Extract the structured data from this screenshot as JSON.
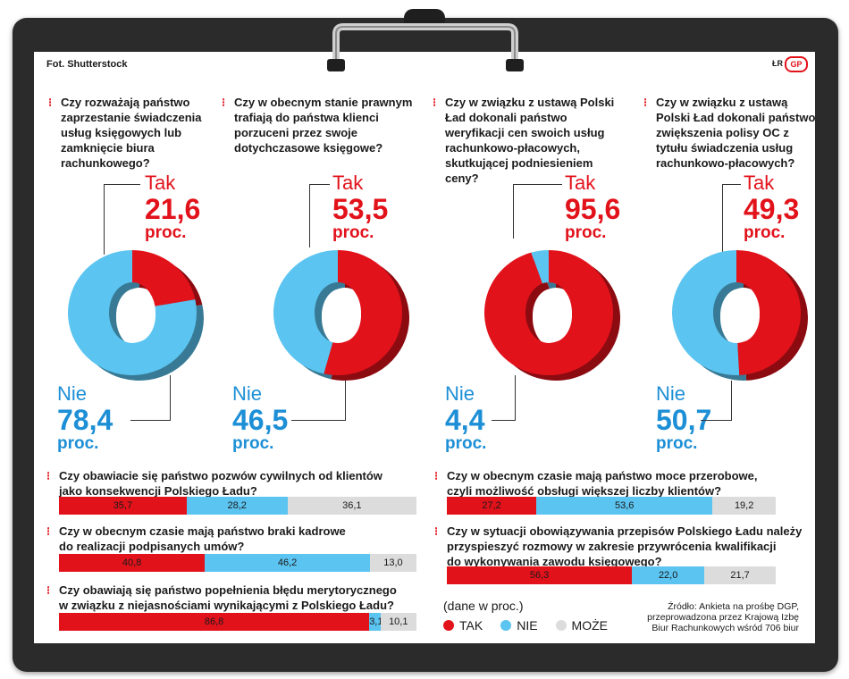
{
  "credit_left": "Fot. Shutterstock",
  "credit_right": "ŁR",
  "logo": "GP",
  "donuts": [
    {
      "question": "Czy rozważają państwo zaprzestanie świadczenia usług księgowych lub zamknięcie biura rachunkowego?",
      "tak_label": "Tak",
      "tak_value": "21,6",
      "nie_label": "Nie",
      "nie_value": "78,4",
      "unit": "proc."
    },
    {
      "question": "Czy w obecnym stanie prawnym trafiają do państwa klienci porzuceni przez swoje dotychczasowe księgowe?",
      "tak_label": "Tak",
      "tak_value": "53,5",
      "nie_label": "Nie",
      "nie_value": "46,5",
      "unit": "proc."
    },
    {
      "question": "Czy w związku z ustawą Polski Ład dokonali państwo weryfikacji cen swoich usług rachunkowo-płacowych, skutkującej podniesieniem ceny?",
      "tak_label": "Tak",
      "tak_value": "95,6",
      "nie_label": "Nie",
      "nie_value": "4,4",
      "unit": "proc."
    },
    {
      "question": "Czy w związku z ustawą Polski Ład dokonali państwo zwiększenia polisy OC z tytułu świadczenia usług rachunkowo-płacowych?",
      "tak_label": "Tak",
      "tak_value": "49,3",
      "nie_label": "Nie",
      "nie_value": "50,7",
      "unit": "proc."
    }
  ],
  "bars": [
    {
      "question_lines": [
        "Czy obawiacie się państwo pozwów cywilnych od klientów",
        "jako konsekwencji Polskiego Ładu?"
      ],
      "labels": [
        "35,7",
        "28,2",
        "36,1"
      ]
    },
    {
      "question_lines": [
        "Czy w obecnym czasie mają państwo braki kadrowe",
        "do realizacji podpisanych umów?"
      ],
      "labels": [
        "40,8",
        "46,2",
        "13,0"
      ]
    },
    {
      "question_lines": [
        "Czy obawiają się państwo popełnienia błędu merytorycznego",
        "w związku z niejasnościami wynikającymi z Polskiego Ładu?"
      ],
      "labels": [
        "86,8",
        "3,1",
        "10,1"
      ]
    },
    {
      "question_lines": [
        "Czy w obecnym czasie mają państwo moce przerobowe,",
        "czyli możliwość obsługi większej liczby klientów?"
      ],
      "labels": [
        "27,2",
        "53,6",
        "19,2"
      ]
    },
    {
      "question_lines": [
        "Czy w sytuacji obowiązywania przepisów Polskiego Ładu należy",
        "przyspieszyć rozmowy w zakresie  przywrócenia kwalifikacji",
        "do wykonywania zawodu księgowego?"
      ],
      "labels": [
        "56,3",
        "22,0",
        "21,7"
      ]
    }
  ],
  "legend": {
    "unit_note": "(dane w proc.)",
    "tak": "TAK",
    "nie": "NIE",
    "moze": "MOŻE"
  },
  "source_lines": [
    "Źródło: Ankieta na prośbę DGP,",
    "przeprowadzona przez Krajową Izbę",
    "Biur Rachunkowych wśród 706 biur"
  ],
  "colors": {
    "tak": "#e2121b",
    "nie": "#5bc4f0",
    "moze": "#dcdcdc"
  },
  "chart_data": [
    {
      "type": "pie",
      "categories": [
        "Tak",
        "Nie"
      ],
      "values": [
        21.6,
        78.4
      ]
    },
    {
      "type": "pie",
      "categories": [
        "Tak",
        "Nie"
      ],
      "values": [
        53.5,
        46.5
      ]
    },
    {
      "type": "pie",
      "categories": [
        "Tak",
        "Nie"
      ],
      "values": [
        95.6,
        4.4
      ]
    },
    {
      "type": "pie",
      "categories": [
        "Tak",
        "Nie"
      ],
      "values": [
        49.3,
        50.7
      ]
    },
    {
      "type": "bar",
      "categories": [
        "TAK",
        "NIE",
        "MOŻE"
      ],
      "values": [
        35.7,
        28.2,
        36.1
      ]
    },
    {
      "type": "bar",
      "categories": [
        "TAK",
        "NIE",
        "MOŻE"
      ],
      "values": [
        40.8,
        46.2,
        13.0
      ]
    },
    {
      "type": "bar",
      "categories": [
        "TAK",
        "NIE",
        "MOŻE"
      ],
      "values": [
        86.8,
        3.1,
        10.1
      ]
    },
    {
      "type": "bar",
      "categories": [
        "TAK",
        "NIE",
        "MOŻE"
      ],
      "values": [
        27.2,
        53.6,
        19.2
      ]
    },
    {
      "type": "bar",
      "categories": [
        "TAK",
        "NIE",
        "MOŻE"
      ],
      "values": [
        56.3,
        22.0,
        21.7
      ]
    }
  ]
}
